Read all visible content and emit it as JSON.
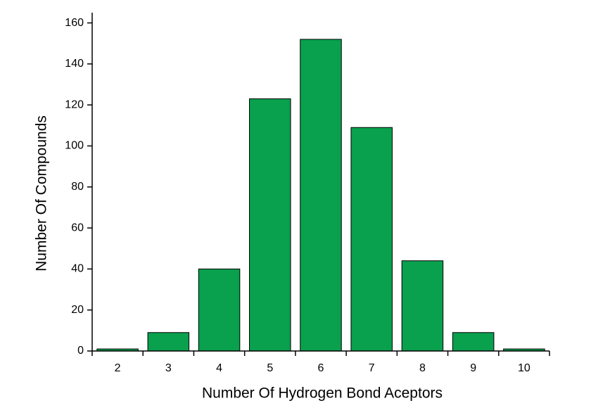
{
  "chart_data": {
    "type": "bar",
    "x_label": "Number Of Hydrogen Bond Aceptors",
    "y_label": "Number Of Compounds",
    "categories": [
      "2",
      "3",
      "4",
      "5",
      "6",
      "7",
      "8",
      "9",
      "10"
    ],
    "values": [
      1,
      9,
      40,
      123,
      152,
      109,
      44,
      9,
      1
    ],
    "color": "#09a04e",
    "ylim": [
      0,
      165
    ],
    "yticks": [
      0,
      20,
      40,
      60,
      80,
      100,
      120,
      140,
      160
    ]
  }
}
